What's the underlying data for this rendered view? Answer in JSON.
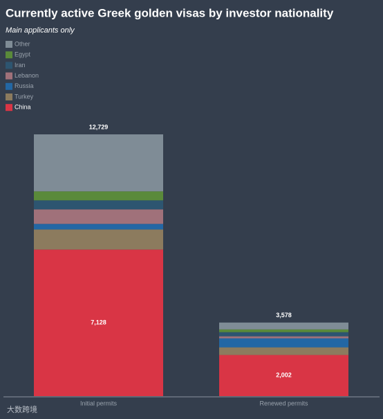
{
  "chart_data": {
    "type": "stacked_bar",
    "title": "Currently active Greek golden visas by investor nationality",
    "subtitle": "Main applicants only",
    "categories": [
      "Initial permits",
      "Renewed permits"
    ],
    "series": [
      {
        "name": "China",
        "color": "#d93545",
        "values": [
          7128,
          2002
        ],
        "value_labels": [
          "7,128",
          "2,002"
        ]
      },
      {
        "name": "Turkey",
        "color": "#8c7b5e",
        "values": [
          977,
          370
        ]
      },
      {
        "name": "Russia",
        "color": "#2367a4",
        "values": [
          270,
          438
        ]
      },
      {
        "name": "Lebanon",
        "color": "#a0717a",
        "values": [
          707,
          100
        ]
      },
      {
        "name": "Iran",
        "color": "#2d5570",
        "values": [
          438,
          200
        ]
      },
      {
        "name": "Egypt",
        "color": "#5a8a3a",
        "values": [
          438,
          135
        ]
      },
      {
        "name": "Other",
        "color": "#7f8c96",
        "values": [
          2771,
          333
        ]
      }
    ],
    "totals": [
      12729,
      3578
    ],
    "total_labels": [
      "12,729",
      "3,578"
    ],
    "watermark": "大数跨境"
  }
}
